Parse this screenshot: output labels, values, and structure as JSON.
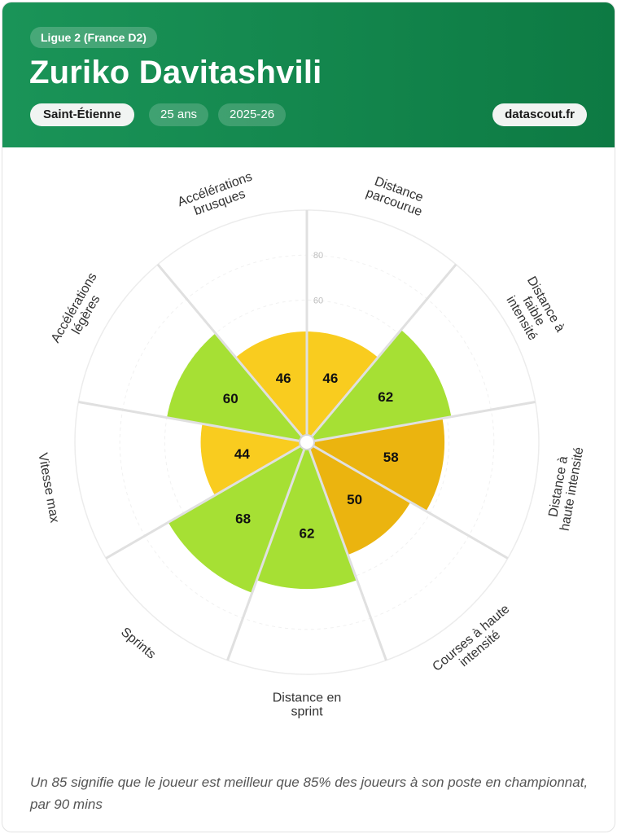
{
  "header": {
    "league": "Ligue 2 (France D2)",
    "player_name": "Zuriko Davitashvili",
    "club": "Saint-Étienne",
    "age": "25 ans",
    "season": "2025-26",
    "brand": "datascout.fr"
  },
  "chart_data": {
    "type": "radar",
    "max": 100,
    "ring_ticks": [
      60,
      80
    ],
    "categories": [
      "Distance parcourue",
      "Distance à faible intensité",
      "Distance à haute intensité",
      "Courses à haute intensité",
      "Distance en sprint",
      "Sprints",
      "Vitesse max",
      "Accélérations légères",
      "Accélérations brusques"
    ],
    "labels": [
      [
        "Distance",
        "parcourue"
      ],
      [
        "Distance à",
        "faible",
        "intensité"
      ],
      [
        "Distance à",
        "haute intensité"
      ],
      [
        "Courses à haute",
        "intensité"
      ],
      [
        "Distance en",
        "sprint"
      ],
      [
        "Sprints"
      ],
      [
        "Vitesse max"
      ],
      [
        "Accélérations",
        "légères"
      ],
      [
        "Accélérations",
        "brusques"
      ]
    ],
    "values": [
      46,
      62,
      58,
      50,
      62,
      68,
      44,
      60,
      46
    ],
    "colors": [
      "#f9cc1f",
      "#a6e034",
      "#ebb40f",
      "#ebb40f",
      "#a6e034",
      "#a6e034",
      "#f9cc1f",
      "#a6e034",
      "#f9cc1f"
    ]
  },
  "footnote": "Un 85 signifie que le joueur est meilleur que 85% des joueurs à son poste en championnat, par 90 mins"
}
